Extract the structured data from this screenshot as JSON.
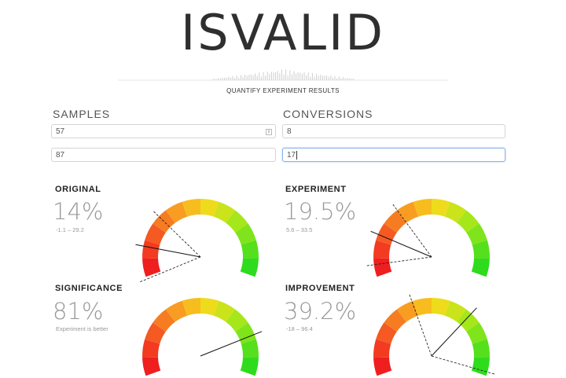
{
  "header": {
    "logo": "ISVALID",
    "tagline": "QUANTIFY EXPERIMENT RESULTS"
  },
  "columns": {
    "samples_label": "SAMPLES",
    "conversions_label": "CONVERSIONS"
  },
  "inputs": {
    "samples_original": "57",
    "samples_experiment": "87",
    "conversions_original": "8",
    "conversions_experiment": "17"
  },
  "gauges": {
    "original": {
      "title": "ORIGINAL",
      "value": "14%",
      "sub": "-1.1 – 29.2",
      "needle": 14,
      "low": -1.1,
      "high": 29.2
    },
    "experiment": {
      "title": "EXPERIMENT",
      "value": "19.5%",
      "sub": "5.6 – 33.5",
      "needle": 19.5,
      "low": 5.6,
      "high": 33.5
    },
    "significance": {
      "title": "SIGNIFICANCE",
      "value": "81%",
      "sub": "Experiment is better",
      "needle": 81
    },
    "improvement": {
      "title": "IMPROVEMENT",
      "value": "39.2%",
      "sub": "-18 – 96.4",
      "needle": 69.6,
      "low": 41,
      "high": 98.2
    }
  },
  "colors": {
    "gauge_bands": [
      "#ef1f1f",
      "#f23b20",
      "#f45a22",
      "#f67c22",
      "#f89d22",
      "#f7bd1f",
      "#eedb1b",
      "#cbe31a",
      "#a5e71a",
      "#7fe41b",
      "#55df1c",
      "#2fdb1d"
    ],
    "needle": "#111111",
    "input_focus": "#8cb5e6"
  }
}
